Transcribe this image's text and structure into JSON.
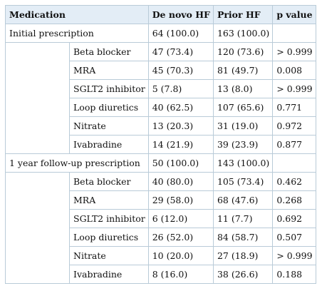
{
  "header": {
    "medication": "Medication",
    "de_novo": "De novo HF",
    "prior": "Prior HF",
    "p_value": "p value"
  },
  "groups": [
    {
      "label": "Initial prescription",
      "de_novo": "64 (100.0)",
      "prior": "163 (100.0)",
      "p_value": "",
      "rows": [
        {
          "medication": "Beta blocker",
          "de_novo": "47 (73.4)",
          "prior": "120 (73.6)",
          "p_value": "> 0.999"
        },
        {
          "medication": "MRA",
          "de_novo": "45 (70.3)",
          "prior": "81 (49.7)",
          "p_value": "0.008"
        },
        {
          "medication": "SGLT2 inhibitor",
          "de_novo": "5 (7.8)",
          "prior": "13 (8.0)",
          "p_value": "> 0.999"
        },
        {
          "medication": "Loop diuretics",
          "de_novo": "40 (62.5)",
          "prior": "107 (65.6)",
          "p_value": "0.771"
        },
        {
          "medication": "Nitrate",
          "de_novo": "13 (20.3)",
          "prior": "31 (19.0)",
          "p_value": "0.972"
        },
        {
          "medication": "Ivabradine",
          "de_novo": "14 (21.9)",
          "prior": "39 (23.9)",
          "p_value": "0.877"
        }
      ]
    },
    {
      "label": "1 year follow-up prescription",
      "de_novo": "50 (100.0)",
      "prior": "143 (100.0)",
      "p_value": "",
      "rows": [
        {
          "medication": "Beta blocker",
          "de_novo": "40 (80.0)",
          "prior": "105 (73.4)",
          "p_value": "0.462"
        },
        {
          "medication": "MRA",
          "de_novo": "29 (58.0)",
          "prior": "68 (47.6)",
          "p_value": "0.268"
        },
        {
          "medication": "SGLT2 inhibitor",
          "de_novo": "6 (12.0)",
          "prior": "11 (7.7)",
          "p_value": "0.692"
        },
        {
          "medication": "Loop diuretics",
          "de_novo": "26 (52.0)",
          "prior": "84 (58.7)",
          "p_value": "0.507"
        },
        {
          "medication": "Nitrate",
          "de_novo": "10 (20.0)",
          "prior": "27 (18.9)",
          "p_value": "> 0.999"
        },
        {
          "medication": "Ivabradine",
          "de_novo": "8 (16.0)",
          "prior": "38 (26.6)",
          "p_value": "0.188"
        }
      ]
    }
  ]
}
